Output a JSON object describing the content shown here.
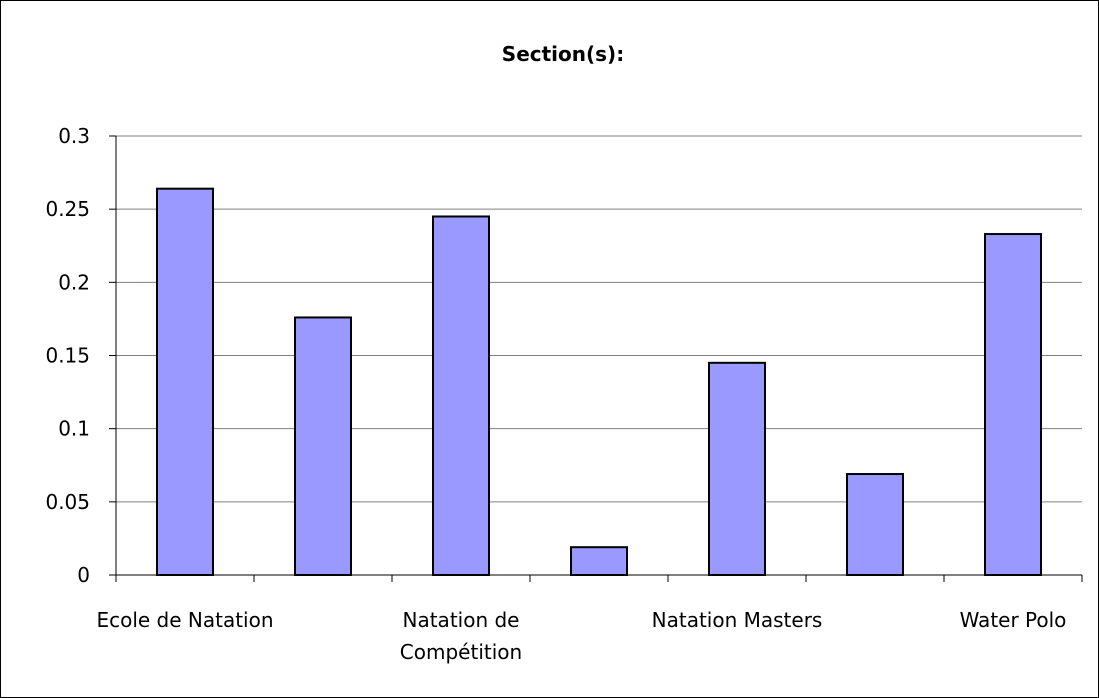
{
  "chart_data": {
    "type": "bar",
    "title": "Section(s):",
    "categories": [
      "Ecole de Natation",
      "",
      "Natation de Compétition",
      "",
      "Natation Masters",
      "",
      "Water Polo"
    ],
    "values": [
      0.264,
      0.176,
      0.245,
      0.019,
      0.145,
      0.069,
      0.233
    ],
    "ylim": [
      0,
      0.3
    ],
    "yticks": [
      "0",
      "0.05",
      "0.1",
      "0.15",
      "0.2",
      "0.25",
      "0.3"
    ],
    "xlabel": "",
    "ylabel": "",
    "grid": true,
    "legend": "none",
    "colors": {
      "bar_fill": "#9999ff",
      "bar_stroke": "#000000",
      "grid": "#808080"
    }
  }
}
